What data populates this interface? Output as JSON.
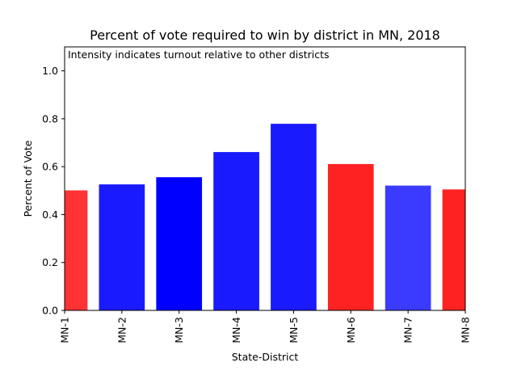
{
  "chart_data": {
    "type": "bar",
    "title": "Percent of vote required to win by district in MN, 2018",
    "annotation": "Intensity indicates turnout relative to other districts",
    "xlabel": "State-District",
    "ylabel": "Percent of Vote",
    "ylim": [
      0,
      1.1
    ],
    "yticks": [
      "0.0",
      "0.2",
      "0.4",
      "0.6",
      "0.8",
      "1.0"
    ],
    "grid": false,
    "categories": [
      "MN-1",
      "MN-2",
      "MN-3",
      "MN-4",
      "MN-5",
      "MN-6",
      "MN-7",
      "MN-8"
    ],
    "values": [
      0.501,
      0.526,
      0.556,
      0.661,
      0.779,
      0.611,
      0.521,
      0.505
    ],
    "colors": [
      "#ff3333",
      "#1a1aff",
      "#0000ff",
      "#1a1aff",
      "#1a1aff",
      "#ff2222",
      "#3b3bff",
      "#ff2222"
    ]
  }
}
